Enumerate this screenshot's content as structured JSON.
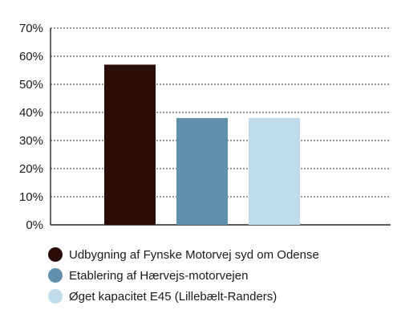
{
  "chart_data": {
    "type": "bar",
    "title": "",
    "xlabel": "",
    "ylabel": "",
    "ylim": [
      0,
      70
    ],
    "y_ticks": [
      "0%",
      "10%",
      "20%",
      "30%",
      "40%",
      "50%",
      "60%",
      "70%"
    ],
    "grid": true,
    "legend_position": "bottom",
    "series": [
      {
        "name": "Udbygning af Fynske Motorvej syd om Odense",
        "value": 57,
        "color": "#2b0d07"
      },
      {
        "name": "Etablering af Hærvejs-motorvejen",
        "value": 38,
        "color": "#6090ab"
      },
      {
        "name": "Øget kapacitet E45 (Lillebælt-Randers)",
        "value": 38,
        "color": "#c0dcec"
      }
    ]
  },
  "legend": {
    "items": [
      {
        "label": "Udbygning af Fynske Motorvej syd om Odense",
        "color": "#2b0d07"
      },
      {
        "label": "Etablering af Hærvejs-motorvejen",
        "color": "#6090ab"
      },
      {
        "label": "Øget kapacitet E45 (Lillebælt-Randers)",
        "color": "#c0dcec"
      }
    ]
  }
}
